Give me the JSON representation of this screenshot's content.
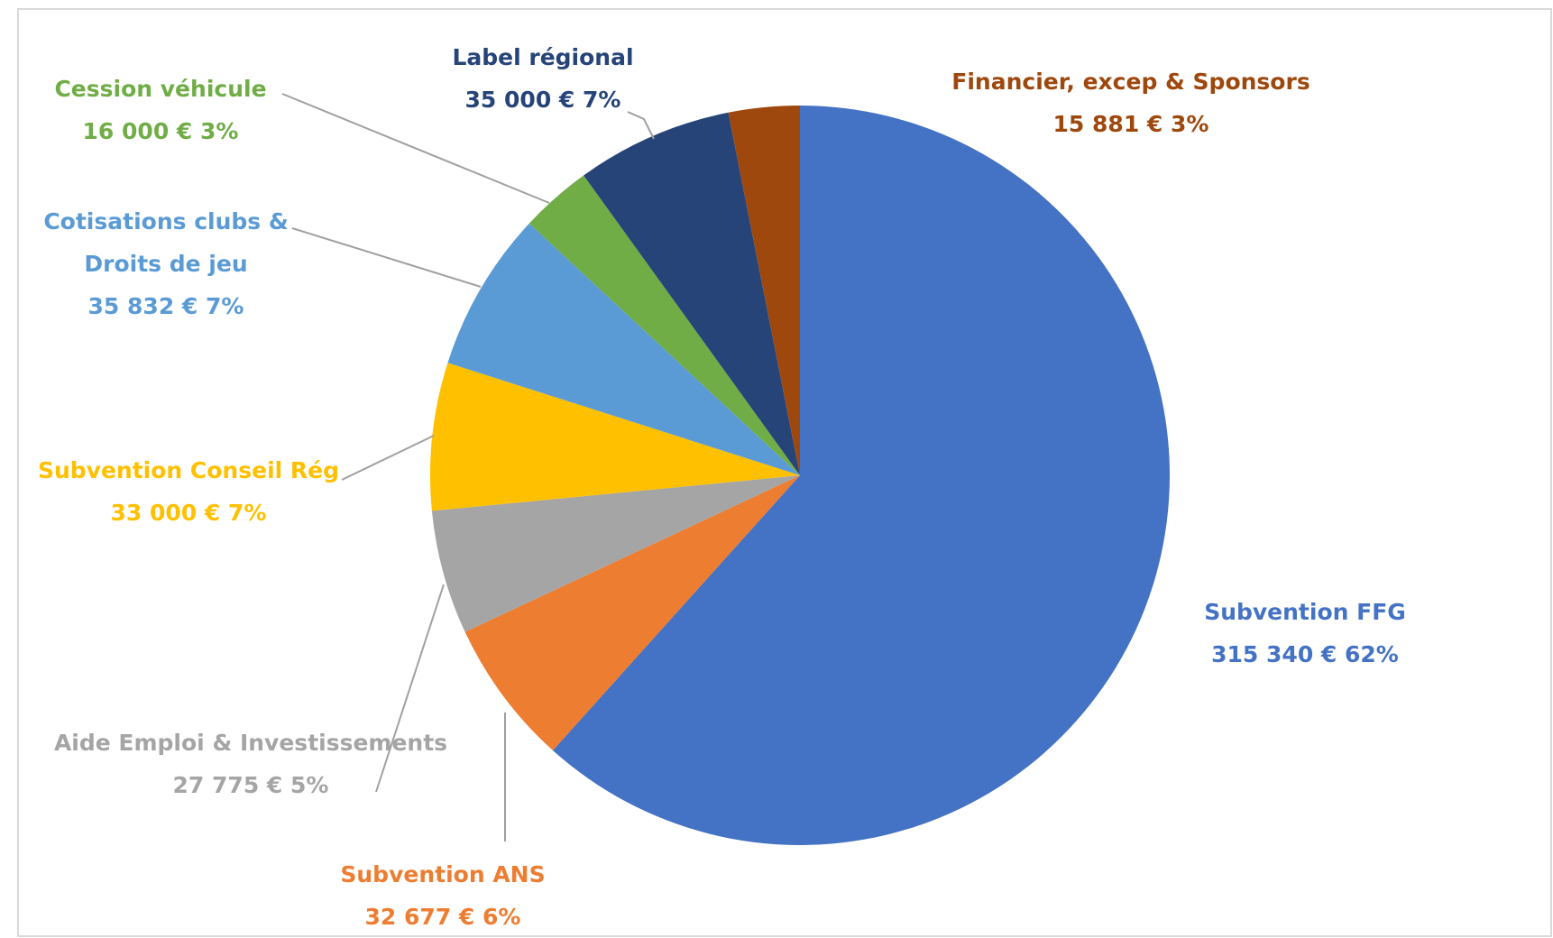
{
  "chart_data": {
    "type": "pie",
    "categories": [
      "Subvention FFG",
      "Subvention ANS",
      "Aide Emploi & Investissements",
      "Subvention Conseil Rég",
      "Cotisations clubs & Droits de jeu",
      "Cession véhicule",
      "Label régional",
      "Financier, excep & Sponsors"
    ],
    "values": [
      315340,
      32677,
      27775,
      33000,
      35832,
      16000,
      35000,
      15881
    ],
    "value_labels": [
      "315 340 € 62%",
      "32 677 € 6%",
      "27 775 € 5%",
      "33 000 € 7%",
      "35 832 € 7%",
      "16 000 € 3%",
      "35 000 € 7%",
      "15 881 € 3%"
    ],
    "colors": [
      "#4472c4",
      "#ed7d31",
      "#a5a5a5",
      "#ffc000",
      "#5b9bd5",
      "#70ad47",
      "#264478",
      "#9e480e"
    ],
    "label_colors": [
      "#4472c4",
      "#ed7d31",
      "#a5a5a5",
      "#ffc000",
      "#5b9bd5",
      "#70ad47",
      "#264478",
      "#9e480e"
    ]
  }
}
